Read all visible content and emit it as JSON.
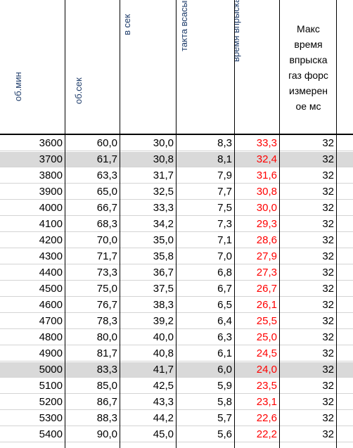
{
  "headers": {
    "rpm": "об.мин",
    "rps": "об.сек",
    "injections": "колличество впрысков\nв сек",
    "ms_intake": "милисекунд время\nтакта всасывания",
    "max_time": "макс возможное\nвремя впрыска",
    "measured": "Макс\nвремя\nвпрыска\nгаз форс\nизмерен\nое мс"
  },
  "rows": [
    {
      "rpm": "3600",
      "rps": "60,0",
      "inj": "30,0",
      "ms": "8,3",
      "max": "33,3",
      "meas": "32",
      "highlight": false
    },
    {
      "rpm": "3700",
      "rps": "61,7",
      "inj": "30,8",
      "ms": "8,1",
      "max": "32,4",
      "meas": "32",
      "highlight": true
    },
    {
      "rpm": "3800",
      "rps": "63,3",
      "inj": "31,7",
      "ms": "7,9",
      "max": "31,6",
      "meas": "32",
      "highlight": false
    },
    {
      "rpm": "3900",
      "rps": "65,0",
      "inj": "32,5",
      "ms": "7,7",
      "max": "30,8",
      "meas": "32",
      "highlight": false
    },
    {
      "rpm": "4000",
      "rps": "66,7",
      "inj": "33,3",
      "ms": "7,5",
      "max": "30,0",
      "meas": "32",
      "highlight": false
    },
    {
      "rpm": "4100",
      "rps": "68,3",
      "inj": "34,2",
      "ms": "7,3",
      "max": "29,3",
      "meas": "32",
      "highlight": false
    },
    {
      "rpm": "4200",
      "rps": "70,0",
      "inj": "35,0",
      "ms": "7,1",
      "max": "28,6",
      "meas": "32",
      "highlight": false
    },
    {
      "rpm": "4300",
      "rps": "71,7",
      "inj": "35,8",
      "ms": "7,0",
      "max": "27,9",
      "meas": "32",
      "highlight": false
    },
    {
      "rpm": "4400",
      "rps": "73,3",
      "inj": "36,7",
      "ms": "6,8",
      "max": "27,3",
      "meas": "32",
      "highlight": false
    },
    {
      "rpm": "4500",
      "rps": "75,0",
      "inj": "37,5",
      "ms": "6,7",
      "max": "26,7",
      "meas": "32",
      "highlight": false
    },
    {
      "rpm": "4600",
      "rps": "76,7",
      "inj": "38,3",
      "ms": "6,5",
      "max": "26,1",
      "meas": "32",
      "highlight": false
    },
    {
      "rpm": "4700",
      "rps": "78,3",
      "inj": "39,2",
      "ms": "6,4",
      "max": "25,5",
      "meas": "32",
      "highlight": false
    },
    {
      "rpm": "4800",
      "rps": "80,0",
      "inj": "40,0",
      "ms": "6,3",
      "max": "25,0",
      "meas": "32",
      "highlight": false
    },
    {
      "rpm": "4900",
      "rps": "81,7",
      "inj": "40,8",
      "ms": "6,1",
      "max": "24,5",
      "meas": "32",
      "highlight": false
    },
    {
      "rpm": "5000",
      "rps": "83,3",
      "inj": "41,7",
      "ms": "6,0",
      "max": "24,0",
      "meas": "32",
      "highlight": true
    },
    {
      "rpm": "5100",
      "rps": "85,0",
      "inj": "42,5",
      "ms": "5,9",
      "max": "23,5",
      "meas": "32",
      "highlight": false
    },
    {
      "rpm": "5200",
      "rps": "86,7",
      "inj": "43,3",
      "ms": "5,8",
      "max": "23,1",
      "meas": "32",
      "highlight": false
    },
    {
      "rpm": "5300",
      "rps": "88,3",
      "inj": "44,2",
      "ms": "5,7",
      "max": "22,6",
      "meas": "32",
      "highlight": false
    },
    {
      "rpm": "5400",
      "rps": "90,0",
      "inj": "45,0",
      "ms": "5,6",
      "max": "22,2",
      "meas": "32",
      "highlight": false
    }
  ],
  "colors": {
    "highlight_row": "#d9d9d9",
    "red_value": "#ff0000",
    "header_vertical_text": "#1f3d6b"
  }
}
